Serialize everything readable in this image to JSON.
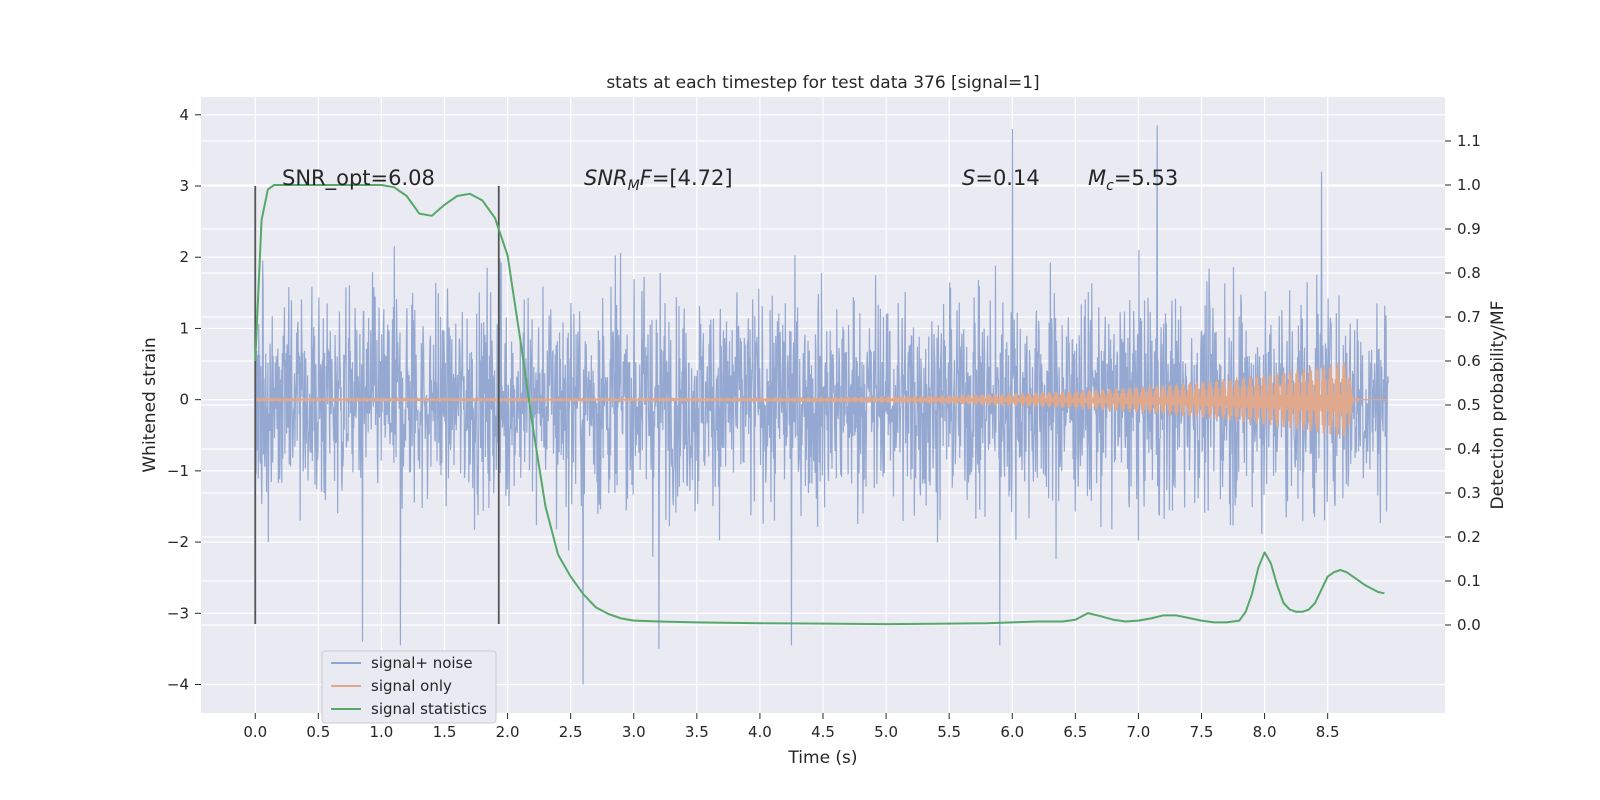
{
  "chart_data": {
    "type": "line",
    "title": "stats at each timestep for test data 376 [signal=1]",
    "xlabel": "Time (s)",
    "ylabel": "Whitened strain",
    "y2label": "Detection probability/MF",
    "xlim": [
      -0.43,
      9.43
    ],
    "ylim": [
      -4.4,
      4.25
    ],
    "y2lim": [
      -0.2,
      1.2
    ],
    "xticks": [
      0.0,
      0.5,
      1.0,
      1.5,
      2.0,
      2.5,
      3.0,
      3.5,
      4.0,
      4.5,
      5.0,
      5.5,
      6.0,
      6.5,
      7.0,
      7.5,
      8.0,
      8.5
    ],
    "xtick_labels": [
      "0.0",
      "0.5",
      "1.0",
      "1.5",
      "2.0",
      "2.5",
      "3.0",
      "3.5",
      "4.0",
      "4.5",
      "5.0",
      "5.5",
      "6.0",
      "6.5",
      "7.0",
      "7.5",
      "8.0",
      "8.5"
    ],
    "yticks": [
      4,
      3,
      2,
      1,
      0,
      -1,
      -2,
      -3,
      -4
    ],
    "ytick_labels": [
      "4",
      "3",
      "2",
      "1",
      "0",
      "−1",
      "−2",
      "−3",
      "−4"
    ],
    "y2ticks": [
      1.1,
      1.0,
      0.9,
      0.8,
      0.7,
      0.6,
      0.5,
      0.4,
      0.3,
      0.2,
      0.1,
      0.0
    ],
    "y2tick_labels": [
      "1.1",
      "1.0",
      "0.9",
      "0.8",
      "0.7",
      "0.6",
      "0.5",
      "0.4",
      "0.3",
      "0.2",
      "0.1",
      "0.0"
    ],
    "grid": true,
    "legend_position": "lower-left",
    "series": [
      {
        "name": "signal+ noise",
        "color": "#8fa4cf",
        "axis": "left",
        "kind": "noise",
        "t_range": [
          0.0,
          8.98
        ],
        "sigma": 0.75,
        "typical_range": [
          -2.3,
          2.4
        ],
        "peaks": [
          {
            "t": 6.0,
            "y": 3.8
          },
          {
            "t": 7.15,
            "y": 3.85
          },
          {
            "t": 8.45,
            "y": 3.2
          },
          {
            "t": 2.6,
            "y": -4.0
          },
          {
            "t": 0.85,
            "y": -3.4
          },
          {
            "t": 1.15,
            "y": -3.45
          },
          {
            "t": 3.2,
            "y": -3.5
          },
          {
            "t": 4.25,
            "y": -3.45
          },
          {
            "t": 5.9,
            "y": -3.45
          }
        ]
      },
      {
        "name": "signal only",
        "color": "#e0a88c",
        "axis": "left",
        "kind": "chirp",
        "t_start": 0.0,
        "t_merge": 8.67,
        "t_end": 8.98,
        "amp_start": 0.02,
        "amp_merge": 0.55
      },
      {
        "name": "signal statistics",
        "color": "#55a868",
        "axis": "right",
        "x": [
          0.0,
          0.05,
          0.1,
          0.15,
          0.2,
          0.3,
          0.5,
          0.7,
          0.9,
          1.0,
          1.1,
          1.2,
          1.3,
          1.4,
          1.5,
          1.6,
          1.7,
          1.8,
          1.9,
          2.0,
          2.1,
          2.2,
          2.3,
          2.4,
          2.5,
          2.6,
          2.7,
          2.8,
          2.9,
          3.0,
          3.2,
          3.5,
          4.0,
          4.5,
          5.0,
          5.5,
          5.8,
          6.0,
          6.2,
          6.4,
          6.5,
          6.6,
          6.7,
          6.8,
          6.9,
          7.0,
          7.1,
          7.2,
          7.3,
          7.4,
          7.5,
          7.6,
          7.7,
          7.8,
          7.85,
          7.9,
          7.95,
          8.0,
          8.05,
          8.1,
          8.15,
          8.2,
          8.25,
          8.3,
          8.35,
          8.4,
          8.45,
          8.5,
          8.55,
          8.6,
          8.65,
          8.7,
          8.8,
          8.9,
          8.95
        ],
        "y": [
          0.6,
          0.92,
          0.99,
          1.0,
          1.0,
          1.0,
          1.0,
          1.0,
          1.0,
          1.0,
          0.995,
          0.975,
          0.935,
          0.93,
          0.955,
          0.975,
          0.98,
          0.965,
          0.925,
          0.84,
          0.65,
          0.45,
          0.27,
          0.16,
          0.11,
          0.07,
          0.04,
          0.025,
          0.015,
          0.01,
          0.008,
          0.006,
          0.004,
          0.003,
          0.002,
          0.003,
          0.004,
          0.006,
          0.008,
          0.008,
          0.012,
          0.027,
          0.02,
          0.012,
          0.008,
          0.01,
          0.015,
          0.022,
          0.022,
          0.016,
          0.01,
          0.006,
          0.006,
          0.01,
          0.03,
          0.07,
          0.13,
          0.165,
          0.14,
          0.09,
          0.05,
          0.035,
          0.03,
          0.03,
          0.035,
          0.05,
          0.08,
          0.11,
          0.12,
          0.125,
          0.12,
          0.11,
          0.09,
          0.075,
          0.072
        ]
      }
    ],
    "vlines": [
      {
        "x": 0.0,
        "y_range": [
          -3.15,
          3.0
        ]
      },
      {
        "x": 1.93,
        "y_range": [
          -3.15,
          3.0
        ]
      }
    ],
    "annotations": [
      {
        "text": "SNR_opt=6.08",
        "x": 0.2,
        "y": 3.0
      },
      {
        "text": "SNR",
        "sub": "M",
        "tail": "F",
        "value": "=[4.72]",
        "x": 2.6,
        "y": 3.0
      },
      {
        "text": "S",
        "value": "=0.14",
        "x": 5.6,
        "y": 3.0
      },
      {
        "text": "M",
        "sub": "c",
        "value": "=5.53",
        "x": 6.6,
        "y": 3.0
      }
    ]
  }
}
